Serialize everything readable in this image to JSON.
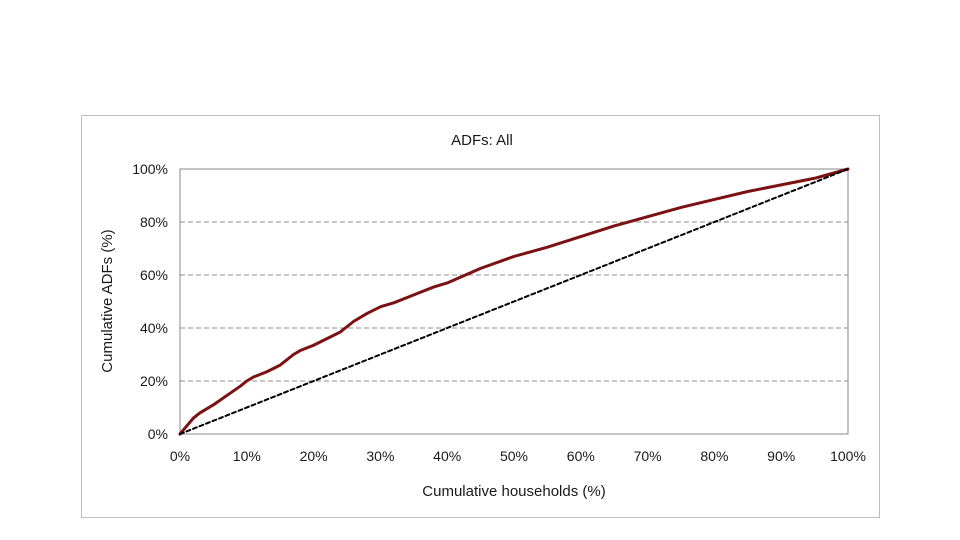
{
  "chart_data": {
    "type": "line",
    "title": "ADFs: All",
    "xlabel": "Cumulative households (%)",
    "ylabel": "Cumulative ADFs (%)",
    "xlim": [
      0,
      100
    ],
    "ylim": [
      0,
      100
    ],
    "x_ticks": [
      "0%",
      "10%",
      "20%",
      "30%",
      "40%",
      "50%",
      "60%",
      "70%",
      "80%",
      "90%",
      "100%"
    ],
    "y_ticks": [
      "0%",
      "20%",
      "40%",
      "60%",
      "80%",
      "100%"
    ],
    "grid": "horizontal dashed",
    "series": [
      {
        "color": "#7b1113",
        "style": "solid",
        "x": [
          0,
          1,
          2,
          3,
          5,
          7,
          9,
          10,
          11,
          13,
          15,
          17,
          18,
          20,
          22,
          24,
          26,
          28,
          30,
          32,
          35,
          38,
          40,
          45,
          50,
          55,
          60,
          65,
          70,
          75,
          80,
          85,
          90,
          95,
          100
        ],
        "y": [
          0,
          3,
          6,
          8,
          11,
          14.5,
          18,
          20,
          21.5,
          23.5,
          26,
          30,
          31.5,
          33.5,
          36,
          38.5,
          42.5,
          45.5,
          48,
          49.5,
          52.5,
          55.5,
          57,
          62.5,
          67,
          70.5,
          74.5,
          78.5,
          82,
          85.5,
          88.5,
          91.5,
          94,
          96.5,
          100
        ]
      },
      {
        "color": "#000000",
        "style": "dashed",
        "x": [
          0,
          100
        ],
        "y": [
          0,
          100
        ]
      }
    ]
  }
}
